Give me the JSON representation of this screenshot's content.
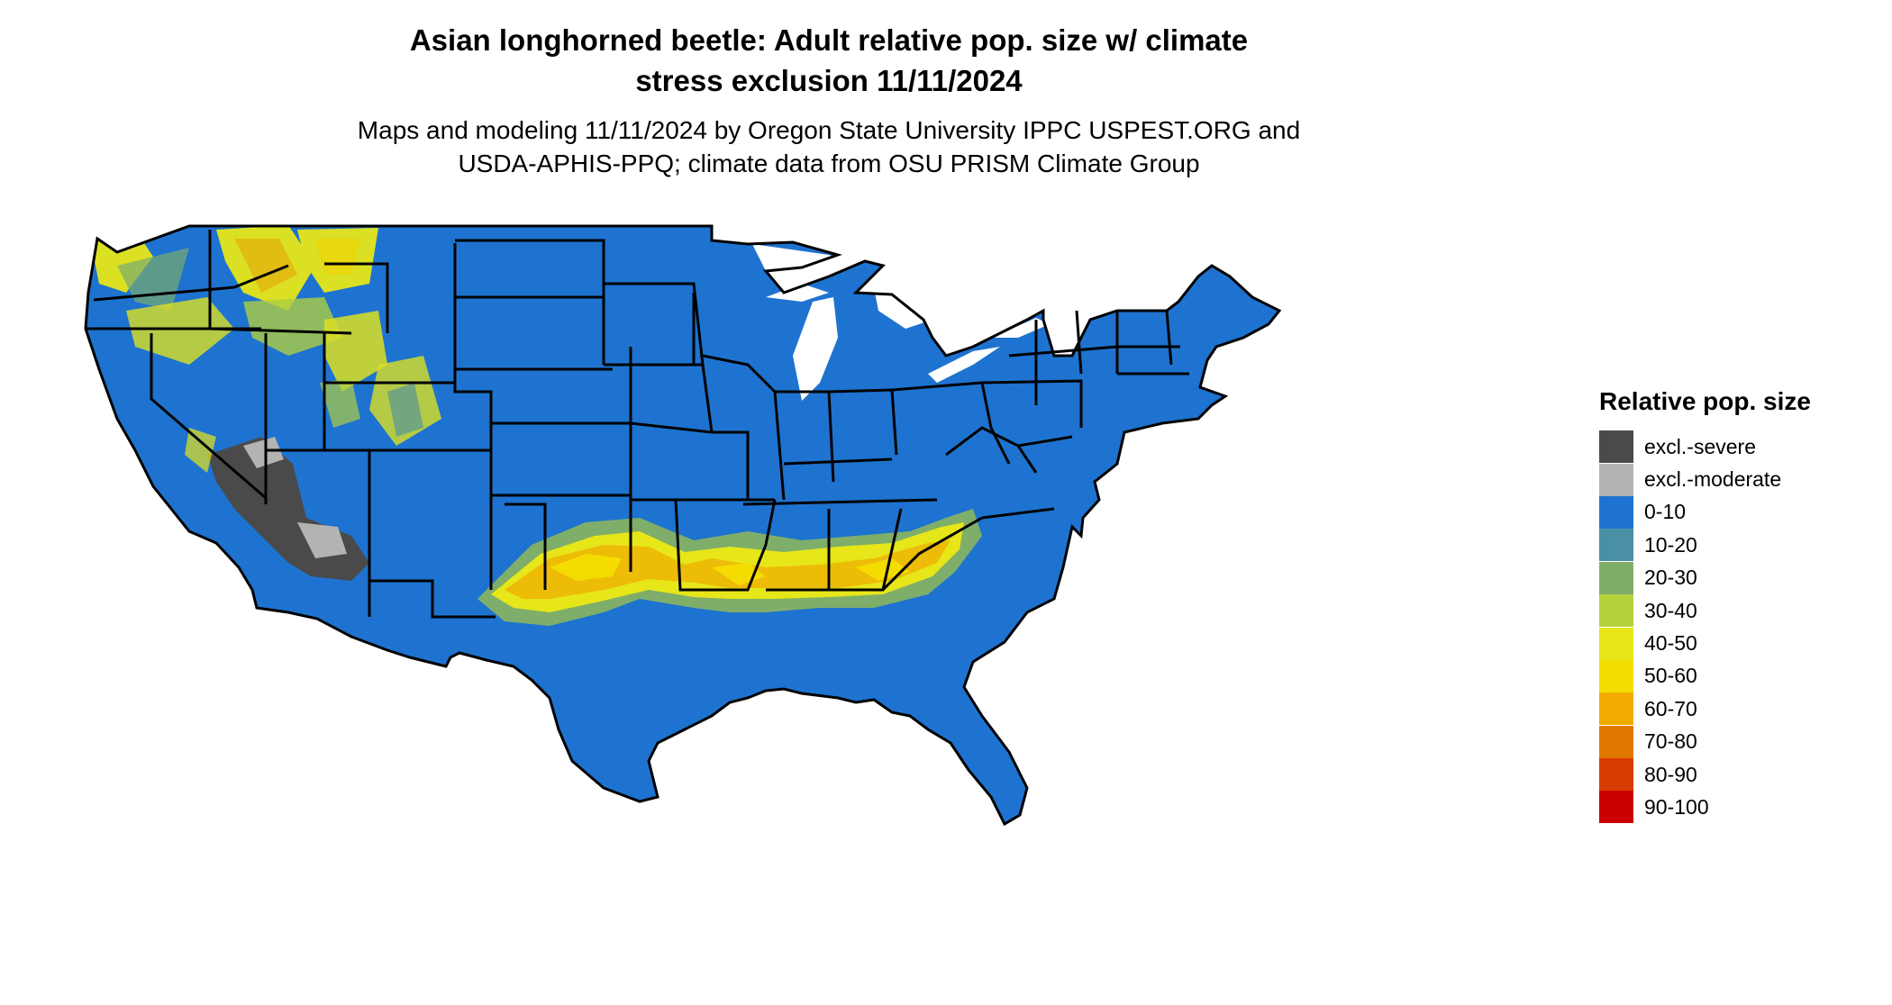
{
  "title_line1": "Asian longhorned beetle: Adult relative pop. size w/ climate",
  "title_line2": "stress exclusion 11/11/2024",
  "subtitle_line1": "Maps and modeling 11/11/2024 by Oregon State University IPPC USPEST.ORG and",
  "subtitle_line2": "USDA-APHIS-PPQ; climate data from OSU PRISM Climate Group",
  "legend": {
    "title": "Relative pop. size",
    "items": [
      {
        "label": "excl.-severe",
        "color": "#4a4a4a"
      },
      {
        "label": "excl.-moderate",
        "color": "#b3b3b3"
      },
      {
        "label": "0-10",
        "color": "#1e73d0"
      },
      {
        "label": "10-20",
        "color": "#4a90a4"
      },
      {
        "label": "20-30",
        "color": "#7fae6a"
      },
      {
        "label": "30-40",
        "color": "#b5d23c"
      },
      {
        "label": "40-50",
        "color": "#e6e619"
      },
      {
        "label": "50-60",
        "color": "#f5dc00"
      },
      {
        "label": "60-70",
        "color": "#f0aa00"
      },
      {
        "label": "70-80",
        "color": "#e07800"
      },
      {
        "label": "80-90",
        "color": "#d83c00"
      },
      {
        "label": "90-100",
        "color": "#cc0000"
      }
    ]
  }
}
